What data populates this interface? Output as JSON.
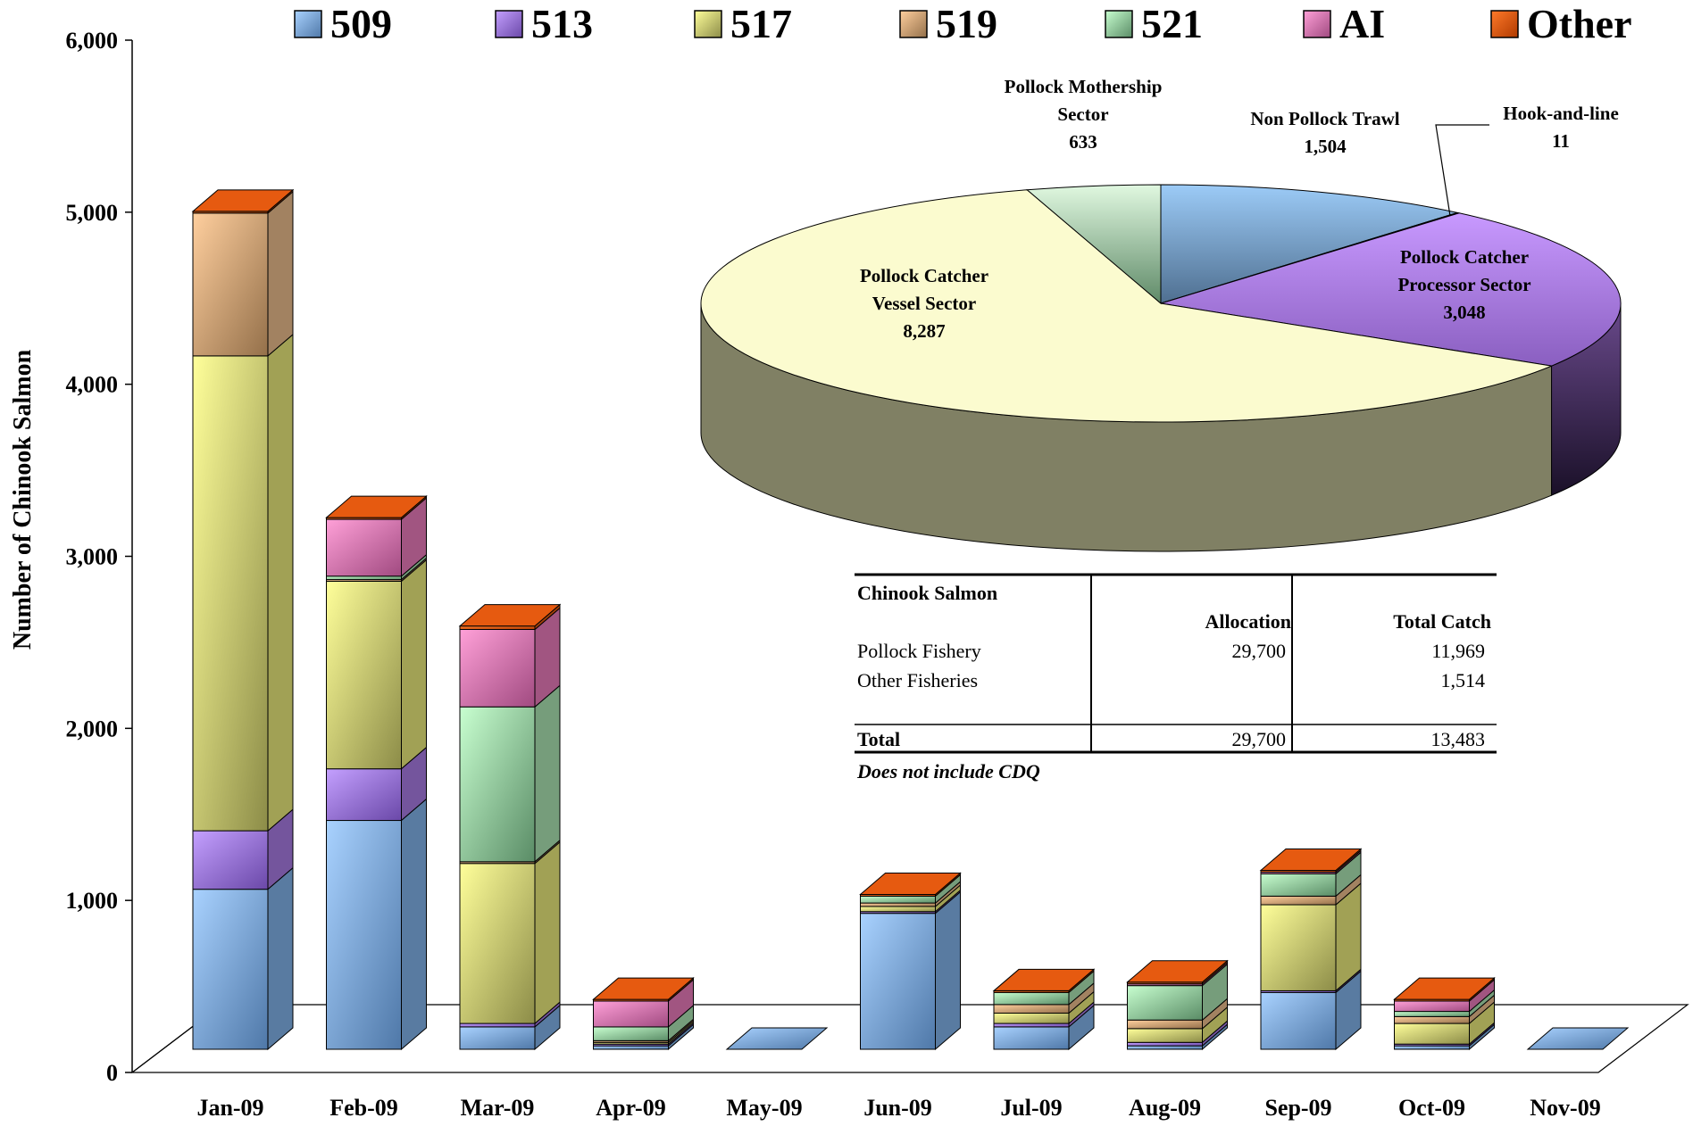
{
  "chart_data": [
    {
      "type": "bar",
      "stacked": true,
      "style": "3d",
      "ylabel": "Number of Chinook Salmon",
      "ylim": [
        0,
        6000
      ],
      "yticks": [
        "0",
        "1,000",
        "2,000",
        "3,000",
        "4,000",
        "5,000",
        "6,000"
      ],
      "legend_position": "top",
      "categories": [
        "Jan-09",
        "Feb-09",
        "Mar-09",
        "Apr-09",
        "May-09",
        "Jun-09",
        "Jul-09",
        "Aug-09",
        "Sep-09",
        "Oct-09",
        "Nov-09"
      ],
      "series": [
        {
          "name": "509",
          "color": "#7fb0e6",
          "values": [
            930,
            1330,
            130,
            20,
            0,
            790,
            130,
            20,
            330,
            20,
            0
          ]
        },
        {
          "name": "513",
          "color": "#a67ae0",
          "values": [
            340,
            300,
            20,
            10,
            0,
            10,
            20,
            20,
            10,
            10,
            0
          ]
        },
        {
          "name": "517",
          "color": "#e6e67a",
          "values": [
            2760,
            1090,
            930,
            10,
            0,
            30,
            60,
            80,
            500,
            120,
            0
          ]
        },
        {
          "name": "519",
          "color": "#e8b98a",
          "values": [
            830,
            10,
            10,
            10,
            0,
            20,
            50,
            50,
            50,
            40,
            0
          ]
        },
        {
          "name": "521",
          "color": "#a8e0b0",
          "values": [
            0,
            20,
            900,
            80,
            0,
            40,
            70,
            200,
            130,
            30,
            0
          ]
        },
        {
          "name": "AI",
          "color": "#e67ab8",
          "values": [
            0,
            330,
            450,
            150,
            0,
            0,
            0,
            10,
            10,
            60,
            0
          ]
        },
        {
          "name": "Other",
          "color": "#e65a10",
          "values": [
            10,
            10,
            20,
            10,
            0,
            10,
            10,
            10,
            10,
            10,
            0
          ]
        }
      ]
    },
    {
      "type": "pie",
      "style": "3d",
      "slices": [
        {
          "label": "Non Pollock Trawl",
          "value": 1504,
          "value_label": "1,504",
          "color": "#8ec4f5"
        },
        {
          "label": "Hook-and-line",
          "value": 11,
          "value_label": "11",
          "color": "#8ec4f5"
        },
        {
          "label": "Pollock Catcher Processor Sector",
          "value": 3048,
          "value_label": "3,048",
          "color": "#c590f5"
        },
        {
          "label": "Pollock Catcher Vessel Sector",
          "value": 8287,
          "value_label": "8,287",
          "color": "#fbfbcf"
        },
        {
          "label": "Pollock Mothership Sector",
          "value": 633,
          "value_label": "633",
          "color": "#d6f5d6"
        }
      ]
    },
    {
      "type": "table",
      "title": "Chinook Salmon",
      "headers": [
        "",
        "Allocation",
        "Total Catch"
      ],
      "rows": [
        [
          "Pollock Fishery",
          "29,700",
          "11,969"
        ],
        [
          "Other Fisheries",
          "",
          "1,514"
        ]
      ],
      "total": [
        "Total",
        "29,700",
        "13,483"
      ],
      "note": "Does not include CDQ"
    }
  ],
  "pie_text": {
    "mothership": [
      "Pollock Mothership",
      "Sector",
      "633"
    ],
    "nonpollock": [
      "Non Pollock Trawl",
      "1,504"
    ],
    "hookline": [
      "Hook-and-line",
      "11"
    ],
    "cp": [
      "Pollock Catcher",
      "Processor Sector",
      "3,048"
    ],
    "cv": [
      "Pollock Catcher",
      "Vessel Sector",
      "8,287"
    ]
  }
}
